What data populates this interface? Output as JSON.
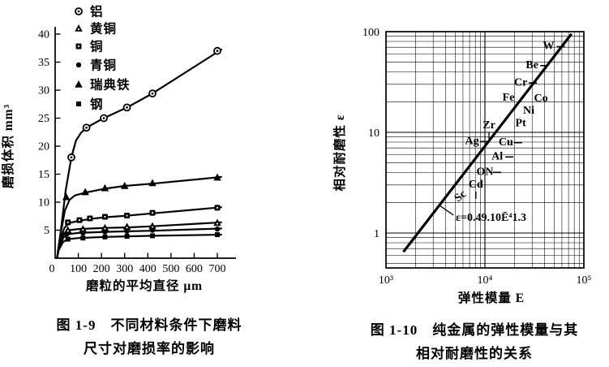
{
  "chart_data": [
    {
      "id": "figure-1-9",
      "type": "line",
      "caption": [
        "图 1-9　不同材料条件下磨料",
        "尺寸对磨损率的影响"
      ],
      "xlabel": "磨粒的平均直径  μm",
      "ylabel": "磨损体积  mm³",
      "xlim": [
        0,
        760
      ],
      "ylim": [
        0,
        42
      ],
      "xticks": [
        0,
        100,
        200,
        300,
        400,
        500,
        600,
        700
      ],
      "yticks": [
        5,
        10,
        15,
        20,
        25,
        30,
        35,
        40
      ],
      "grid": false,
      "legend_position": "top-left-inside",
      "series": [
        {
          "name": "铝",
          "marker": "circle-dot",
          "line": [
            [
              8,
              0
            ],
            [
              25,
              5
            ],
            [
              45,
              12
            ],
            [
              70,
              18
            ],
            [
              90,
              21
            ],
            [
              112,
              22.4
            ],
            [
              135,
              23.3
            ],
            [
              210,
              25
            ],
            [
              310,
              26.9
            ],
            [
              420,
              29.4
            ],
            [
              720,
              37.3
            ]
          ],
          "markers": [
            [
              70,
              18
            ],
            [
              135,
              23.3
            ],
            [
              210,
              25
            ],
            [
              310,
              26.9
            ],
            [
              420,
              29.4
            ],
            [
              700,
              37
            ]
          ]
        },
        {
          "name": "黄铜",
          "marker": "triangle-dot",
          "line": [
            [
              8,
              0
            ],
            [
              18,
              2.4
            ],
            [
              38,
              4.4
            ],
            [
              60,
              5
            ],
            [
              100,
              5.2
            ],
            [
              215,
              5.4
            ],
            [
              310,
              5.5
            ],
            [
              420,
              5.7
            ],
            [
              720,
              6.4
            ]
          ],
          "markers": [
            [
              55,
              5
            ],
            [
              120,
              5.2
            ],
            [
              215,
              5.4
            ],
            [
              310,
              5.6
            ],
            [
              420,
              5.7
            ],
            [
              700,
              6.3
            ]
          ]
        },
        {
          "name": "铜",
          "marker": "square-dot",
          "line": [
            [
              8,
              0
            ],
            [
              20,
              3
            ],
            [
              40,
              5.4
            ],
            [
              62,
              6.3
            ],
            [
              95,
              6.6
            ],
            [
              150,
              7
            ],
            [
              215,
              7.3
            ],
            [
              310,
              7.6
            ],
            [
              420,
              8
            ],
            [
              720,
              9.1
            ]
          ],
          "markers": [
            [
              55,
              6.4
            ],
            [
              105,
              6.8
            ],
            [
              150,
              7.1
            ],
            [
              215,
              7.4
            ],
            [
              310,
              7.6
            ],
            [
              420,
              8.1
            ],
            [
              700,
              9
            ]
          ]
        },
        {
          "name": "青铜",
          "marker": "circle-filled",
          "line": [
            [
              8,
              0
            ],
            [
              16,
              1.8
            ],
            [
              36,
              3.7
            ],
            [
              58,
              4.3
            ],
            [
              100,
              4.5
            ],
            [
              215,
              4.7
            ],
            [
              310,
              4.8
            ],
            [
              420,
              4.9
            ],
            [
              720,
              5.3
            ]
          ],
          "markers": [
            [
              50,
              4.3
            ],
            [
              120,
              4.5
            ],
            [
              215,
              4.7
            ],
            [
              310,
              4.8
            ],
            [
              420,
              5
            ],
            [
              700,
              5.2
            ]
          ]
        },
        {
          "name": "瑞典铁",
          "marker": "triangle-filled",
          "line": [
            [
              8,
              0
            ],
            [
              22,
              4
            ],
            [
              42,
              8.5
            ],
            [
              62,
              10.4
            ],
            [
              85,
              11.2
            ],
            [
              130,
              11.7
            ],
            [
              215,
              12.4
            ],
            [
              300,
              12.9
            ],
            [
              420,
              13.3
            ],
            [
              720,
              14.5
            ]
          ],
          "markers": [
            [
              48,
              10.9
            ],
            [
              130,
              11.8
            ],
            [
              215,
              12.5
            ],
            [
              300,
              12.9
            ],
            [
              420,
              13.4
            ],
            [
              700,
              14.4
            ]
          ]
        },
        {
          "name": "钢",
          "marker": "square-filled",
          "line": [
            [
              8,
              0
            ],
            [
              15,
              1.4
            ],
            [
              34,
              2.9
            ],
            [
              56,
              3.4
            ],
            [
              100,
              3.6
            ],
            [
              215,
              3.8
            ],
            [
              310,
              3.9
            ],
            [
              420,
              4
            ],
            [
              720,
              4.2
            ]
          ],
          "markers": [
            [
              55,
              3.4
            ],
            [
              120,
              3.6
            ],
            [
              215,
              3.8
            ],
            [
              310,
              3.9
            ],
            [
              420,
              4
            ],
            [
              700,
              4.2
            ]
          ]
        }
      ]
    },
    {
      "id": "figure-1-10",
      "type": "scatter",
      "caption": [
        "图 1-10　纯金属的弹性模量与其",
        "相对耐磨性的关系"
      ],
      "xlabel": "弹性模量  E",
      "ylabel": "相对耐磨性 ε",
      "xscale": "log",
      "yscale": "log",
      "xlim": [
        1000,
        100000
      ],
      "ylim": [
        0.45,
        100
      ],
      "grid": "log-both",
      "xtick_labels": [
        {
          "value": 1000,
          "label": "10³"
        },
        {
          "value": 10000,
          "label": "10⁴"
        },
        {
          "value": 100000,
          "label": "10⁵"
        }
      ],
      "ytick_labels": [
        {
          "value": 1,
          "label": "1"
        },
        {
          "value": 10,
          "label": "10"
        },
        {
          "value": 100,
          "label": "100"
        }
      ],
      "trend_line": {
        "x1": 1500,
        "y1": 0.65,
        "x2": 75000,
        "y2": 95
      },
      "equation": {
        "text": "ε=0.49.10Ē⁴1.3",
        "x": 5070,
        "y": 1.32,
        "leader": {
          "x1": 3470,
          "y1": 1.88,
          "x2": 4800,
          "y2": 1.51
        }
      },
      "points": [
        {
          "label": "W",
          "x": 44000,
          "y": 71,
          "dash": true
        },
        {
          "label": "Be",
          "x": 30000,
          "y": 46,
          "dash": true
        },
        {
          "label": "Cr",
          "x": 23000,
          "y": 31,
          "dash": true
        },
        {
          "label": "Fe",
          "x": 17300,
          "y": 22
        },
        {
          "label": "Co",
          "x": 36800,
          "y": 21.5
        },
        {
          "label": "Ni",
          "x": 27700,
          "y": 16.3
        },
        {
          "label": "Pt",
          "x": 23000,
          "y": 12.2
        },
        {
          "label": "Zr",
          "x": 11000,
          "y": 11.6,
          "tick": true
        },
        {
          "label": "Ag",
          "x": 7400,
          "y": 8.1,
          "dash": true
        },
        {
          "label": "Cu",
          "x": 16300,
          "y": 7.9,
          "dash": true
        },
        {
          "label": "Al",
          "x": 13300,
          "y": 5.7,
          "dash": true
        },
        {
          "label": "ON",
          "x": 10000,
          "y": 4.0,
          "dash": true
        },
        {
          "label": "Cd",
          "x": 8100,
          "y": 3.0,
          "tick": true
        },
        {
          "label": "Sc",
          "x": 5700,
          "y": 2.3,
          "rotate": -40
        }
      ]
    }
  ]
}
